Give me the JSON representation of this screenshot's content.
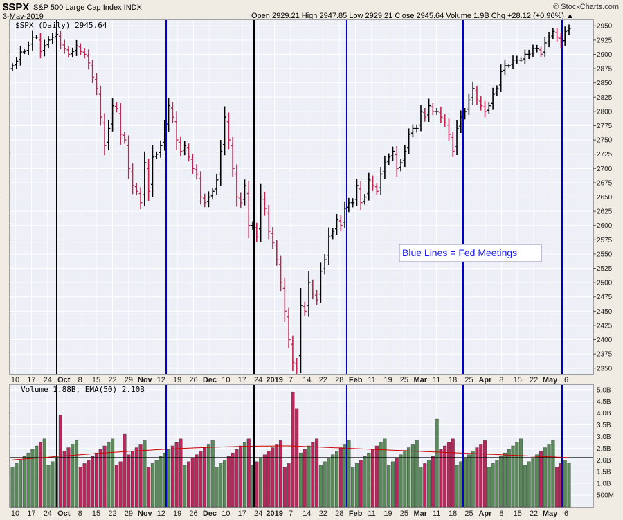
{
  "header": {
    "symbol": "$SPX",
    "description": "S&P 500 Large Cap Index  INDX",
    "date": "3-May-2019",
    "ohlc": "Open 2929.21  High 2947.85  Low 2929.21  Close 2945.64  Volume 1.9B  Chg +28.12 (+0.96%) ▲",
    "credit": "© StockCharts.com"
  },
  "chart_data": [
    {
      "type": "bar",
      "title": "$SPX (Daily) 2945.64",
      "ylim": [
        2340,
        2960
      ],
      "y_ticks": [
        2350,
        2375,
        2400,
        2425,
        2450,
        2475,
        2500,
        2525,
        2550,
        2575,
        2600,
        2625,
        2650,
        2675,
        2700,
        2725,
        2750,
        2775,
        2800,
        2825,
        2850,
        2875,
        2900,
        2925,
        2950
      ],
      "x_tick_labels": [
        "10",
        "17",
        "24",
        "Oct",
        "8",
        "15",
        "22",
        "29",
        "Nov",
        "12",
        "19",
        "26",
        "Dec",
        "10",
        "17",
        "24",
        "2019",
        "7",
        "14",
        "22",
        "28",
        "Feb",
        "11",
        "19",
        "25",
        "Mar",
        "11",
        "18",
        "25",
        "Apr",
        "8",
        "15",
        "22",
        "May",
        "6"
      ],
      "bold_x_labels": [
        "Oct",
        "Nov",
        "Dec",
        "2019",
        "Feb",
        "Mar",
        "Apr",
        "May"
      ],
      "annotation": "Blue Lines = Fed Meetings",
      "fed_meeting_lines": [
        "Sep 26, 2018",
        "Nov 8, 2018",
        "Dec 19, 2018",
        "Jan 30, 2019",
        "Mar 20, 2019",
        "May 1, 2019"
      ],
      "closes": [
        2880,
        2888,
        2904,
        2905,
        2915,
        2930,
        2930,
        2905,
        2915,
        2925,
        2930,
        2935,
        2918,
        2910,
        2900,
        2905,
        2915,
        2905,
        2900,
        2885,
        2860,
        2840,
        2790,
        2740,
        2770,
        2810,
        2805,
        2760,
        2750,
        2700,
        2670,
        2660,
        2640,
        2710,
        2660,
        2720,
        2725,
        2740,
        2770,
        2810,
        2790,
        2750,
        2730,
        2740,
        2720,
        2700,
        2690,
        2650,
        2640,
        2650,
        2660,
        2680,
        2730,
        2790,
        2750,
        2700,
        2650,
        2640,
        2670,
        2600,
        2600,
        2580,
        2650,
        2630,
        2590,
        2570,
        2540,
        2500,
        2450,
        2400,
        2360,
        2350,
        2460,
        2450,
        2500,
        2480,
        2470,
        2520,
        2540,
        2580,
        2590,
        2610,
        2600,
        2630,
        2640,
        2640,
        2670,
        2640,
        2650,
        2680,
        2670,
        2660,
        2690,
        2710,
        2720,
        2730,
        2700,
        2710,
        2730,
        2760,
        2770,
        2770,
        2800,
        2790,
        2810,
        2800,
        2800,
        2790,
        2780,
        2760,
        2730,
        2770,
        2790,
        2800,
        2820,
        2840,
        2820,
        2810,
        2800,
        2810,
        2830,
        2840,
        2870,
        2880,
        2880,
        2890,
        2890,
        2890,
        2900,
        2900,
        2910,
        2910,
        2900,
        2920,
        2930,
        2940,
        2930,
        2920,
        2940,
        2945
      ],
      "volume": {
        "type": "bar",
        "title": "Volume 1.88B, EMA(50) 2.10B",
        "ylim": [
          0,
          5.2
        ],
        "y_ticks": [
          "500M",
          "1.0B",
          "1.5B",
          "2.0B",
          "2.5B",
          "3.0B",
          "3.5B",
          "4.0B",
          "4.5B",
          "5.0B"
        ],
        "reference_line": 2.1,
        "ema_start": 2.0,
        "ema_peak": 2.6,
        "ema_end": 2.1
      }
    }
  ],
  "colors": {
    "up": "#000000",
    "down": "#c0244e",
    "vol_up": "#5a8a5a",
    "vol_down": "#b8285a",
    "fed_line": "#0000cc",
    "event_line": "#000000",
    "ema": "#cc0000",
    "panel_bg": "#eef0f8"
  }
}
